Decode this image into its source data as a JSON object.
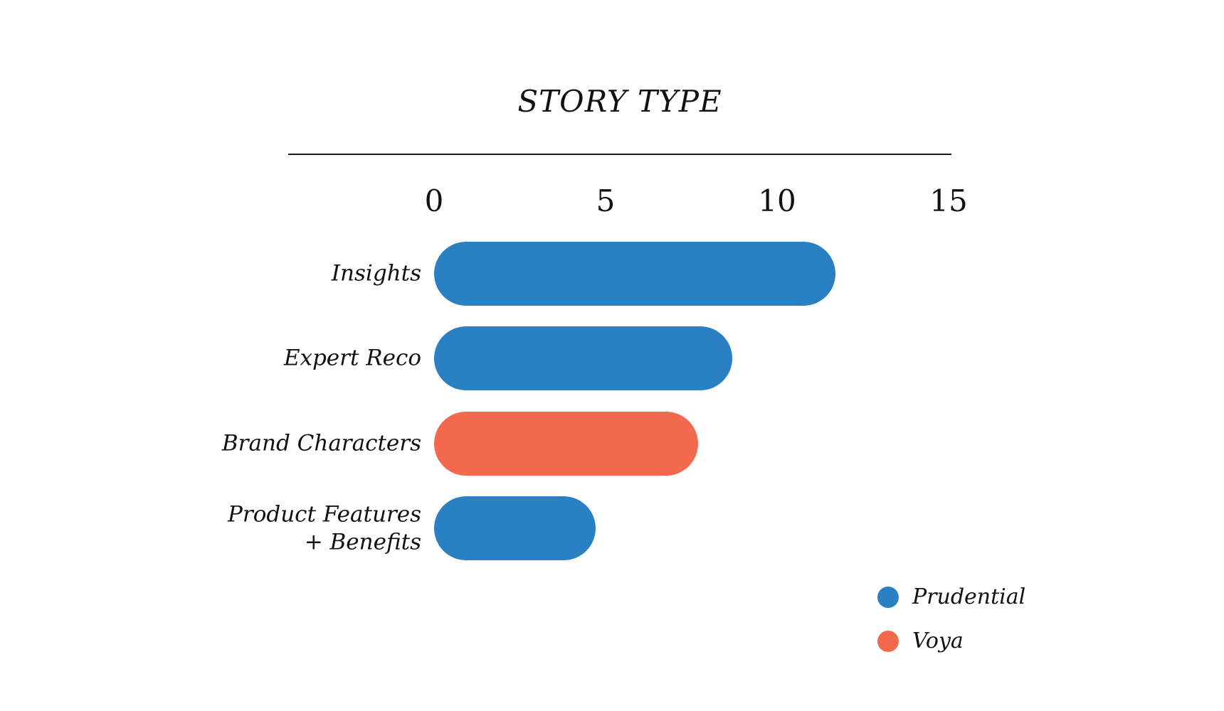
{
  "header": {
    "title": "STORY TYPE"
  },
  "colors": {
    "prudential_blue": "#2980C3",
    "voya_orange": "#F2694E",
    "text": "#111111",
    "background": "#FFFFFF"
  },
  "chart_data": {
    "type": "bar",
    "orientation": "horizontal",
    "title": "STORY TYPE",
    "categories": [
      "Insights",
      "Expert Reco",
      "Brand Characters",
      "Product Features\n+ Benefits"
    ],
    "values": [
      11.7,
      8.7,
      7.7,
      4.7
    ],
    "series_by_bar": [
      "Prudential",
      "Prudential",
      "Voya",
      "Prudential"
    ],
    "xlabel": "",
    "ylabel": "",
    "xlim": [
      0,
      15
    ],
    "xticks": [
      "0",
      "5",
      "10",
      "15"
    ],
    "grid": false,
    "bar_style": "rounded-pill",
    "legend": {
      "position": "bottom-right",
      "entries": [
        {
          "label": "Prudential",
          "color": "#2980C3"
        },
        {
          "label": "Voya",
          "color": "#F2694E"
        }
      ]
    }
  }
}
